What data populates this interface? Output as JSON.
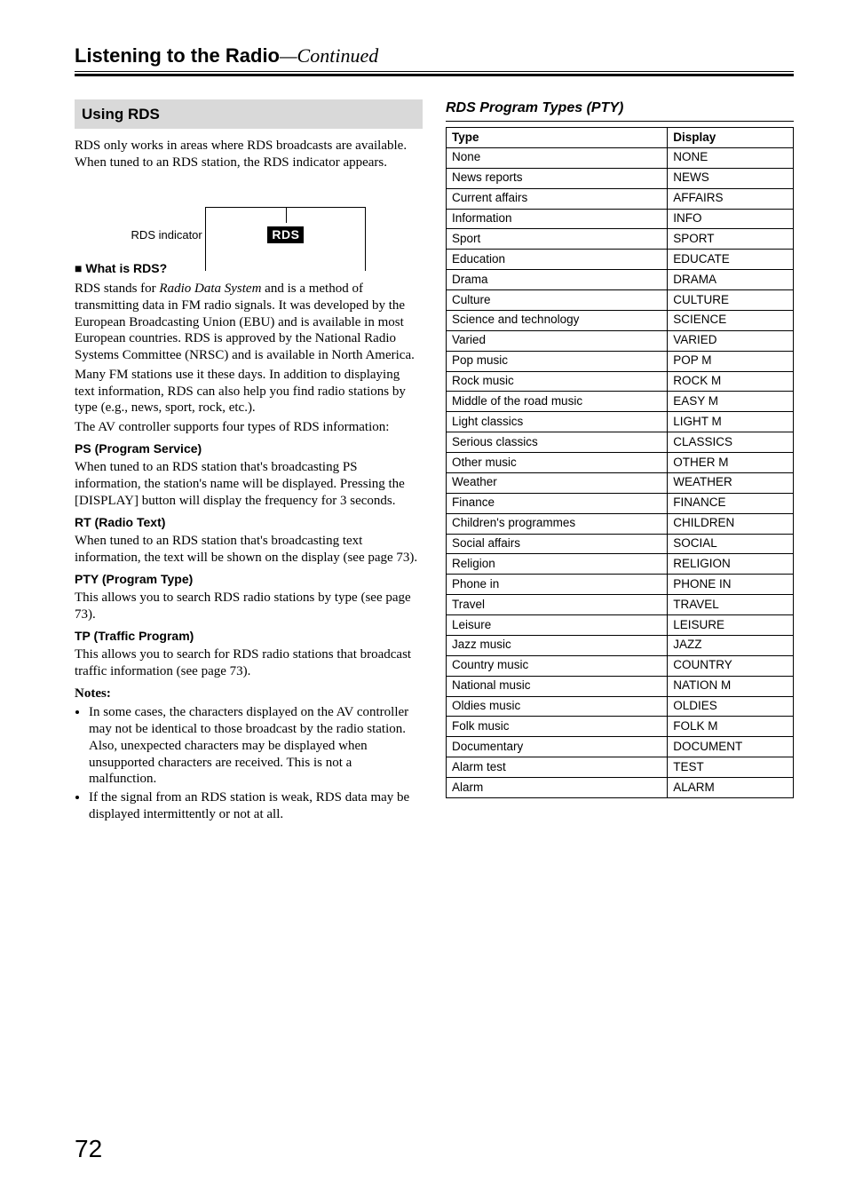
{
  "header": {
    "title": "Listening to the Radio",
    "continued": "—Continued"
  },
  "left": {
    "section_heading": "Using RDS",
    "intro": "RDS only works in areas where RDS broadcasts are available. When tuned to an RDS station, the RDS indicator appears.",
    "figure_label": "RDS indicator",
    "rds_badge": "RDS",
    "what_is_heading": "What is RDS?",
    "what_is_p1a": "RDS stands for ",
    "what_is_p1b": "Radio Data System",
    "what_is_p1c": " and is a method of transmitting data in FM radio signals. It was developed by the European Broadcasting Union (EBU) and is available in most European countries. RDS is approved by the National Radio Systems Committee (NRSC) and is available in North America.",
    "what_is_p2": "Many FM stations use it these days. In addition to displaying text information, RDS can also help you find radio stations by type (e.g., news, sport, rock, etc.).",
    "what_is_p3": "The AV controller supports four types of RDS information:",
    "ps_heading": "PS (Program Service)",
    "ps_body": "When tuned to an RDS station that's broadcasting PS information, the station's name will be displayed. Pressing the [DISPLAY] button will display the frequency for 3 seconds.",
    "rt_heading": "RT (Radio Text)",
    "rt_body": "When tuned to an RDS station that's broadcasting text information, the text will be shown on the display (see page 73).",
    "pty_heading": "PTY (Program Type)",
    "pty_body": "This allows you to search RDS radio stations by type (see page 73).",
    "tp_heading": "TP (Traffic Program)",
    "tp_body": "This allows you to search for RDS radio stations that broadcast traffic information (see page 73).",
    "notes_heading": "Notes:",
    "note1": "In some cases, the characters displayed on the AV controller may not be identical to those broadcast by the radio station. Also, unexpected characters may be displayed when unsupported characters are received. This is not a malfunction.",
    "note2": "If the signal from an RDS station is weak, RDS data may be displayed intermittently or not at all."
  },
  "right": {
    "subheading": "RDS Program Types (PTY)",
    "col1": "Type",
    "col2": "Display",
    "rows": [
      {
        "t": "None",
        "d": "NONE"
      },
      {
        "t": "News reports",
        "d": "NEWS"
      },
      {
        "t": "Current affairs",
        "d": "AFFAIRS"
      },
      {
        "t": "Information",
        "d": "INFO"
      },
      {
        "t": "Sport",
        "d": "SPORT"
      },
      {
        "t": "Education",
        "d": "EDUCATE"
      },
      {
        "t": "Drama",
        "d": "DRAMA"
      },
      {
        "t": "Culture",
        "d": "CULTURE"
      },
      {
        "t": "Science and technology",
        "d": "SCIENCE"
      },
      {
        "t": "Varied",
        "d": "VARIED"
      },
      {
        "t": "Pop music",
        "d": "POP M"
      },
      {
        "t": "Rock music",
        "d": "ROCK M"
      },
      {
        "t": "Middle of the road music",
        "d": "EASY M"
      },
      {
        "t": "Light classics",
        "d": "LIGHT M"
      },
      {
        "t": "Serious classics",
        "d": "CLASSICS"
      },
      {
        "t": "Other music",
        "d": "OTHER M"
      },
      {
        "t": "Weather",
        "d": "WEATHER"
      },
      {
        "t": "Finance",
        "d": "FINANCE"
      },
      {
        "t": "Children's programmes",
        "d": "CHILDREN"
      },
      {
        "t": "Social affairs",
        "d": "SOCIAL"
      },
      {
        "t": "Religion",
        "d": "RELIGION"
      },
      {
        "t": "Phone in",
        "d": "PHONE IN"
      },
      {
        "t": "Travel",
        "d": "TRAVEL"
      },
      {
        "t": "Leisure",
        "d": "LEISURE"
      },
      {
        "t": "Jazz music",
        "d": "JAZZ"
      },
      {
        "t": "Country music",
        "d": "COUNTRY"
      },
      {
        "t": "National music",
        "d": "NATION M"
      },
      {
        "t": "Oldies music",
        "d": "OLDIES"
      },
      {
        "t": "Folk music",
        "d": "FOLK M"
      },
      {
        "t": "Documentary",
        "d": "DOCUMENT"
      },
      {
        "t": "Alarm test",
        "d": "TEST"
      },
      {
        "t": "Alarm",
        "d": "ALARM"
      }
    ]
  },
  "page_number": "72"
}
